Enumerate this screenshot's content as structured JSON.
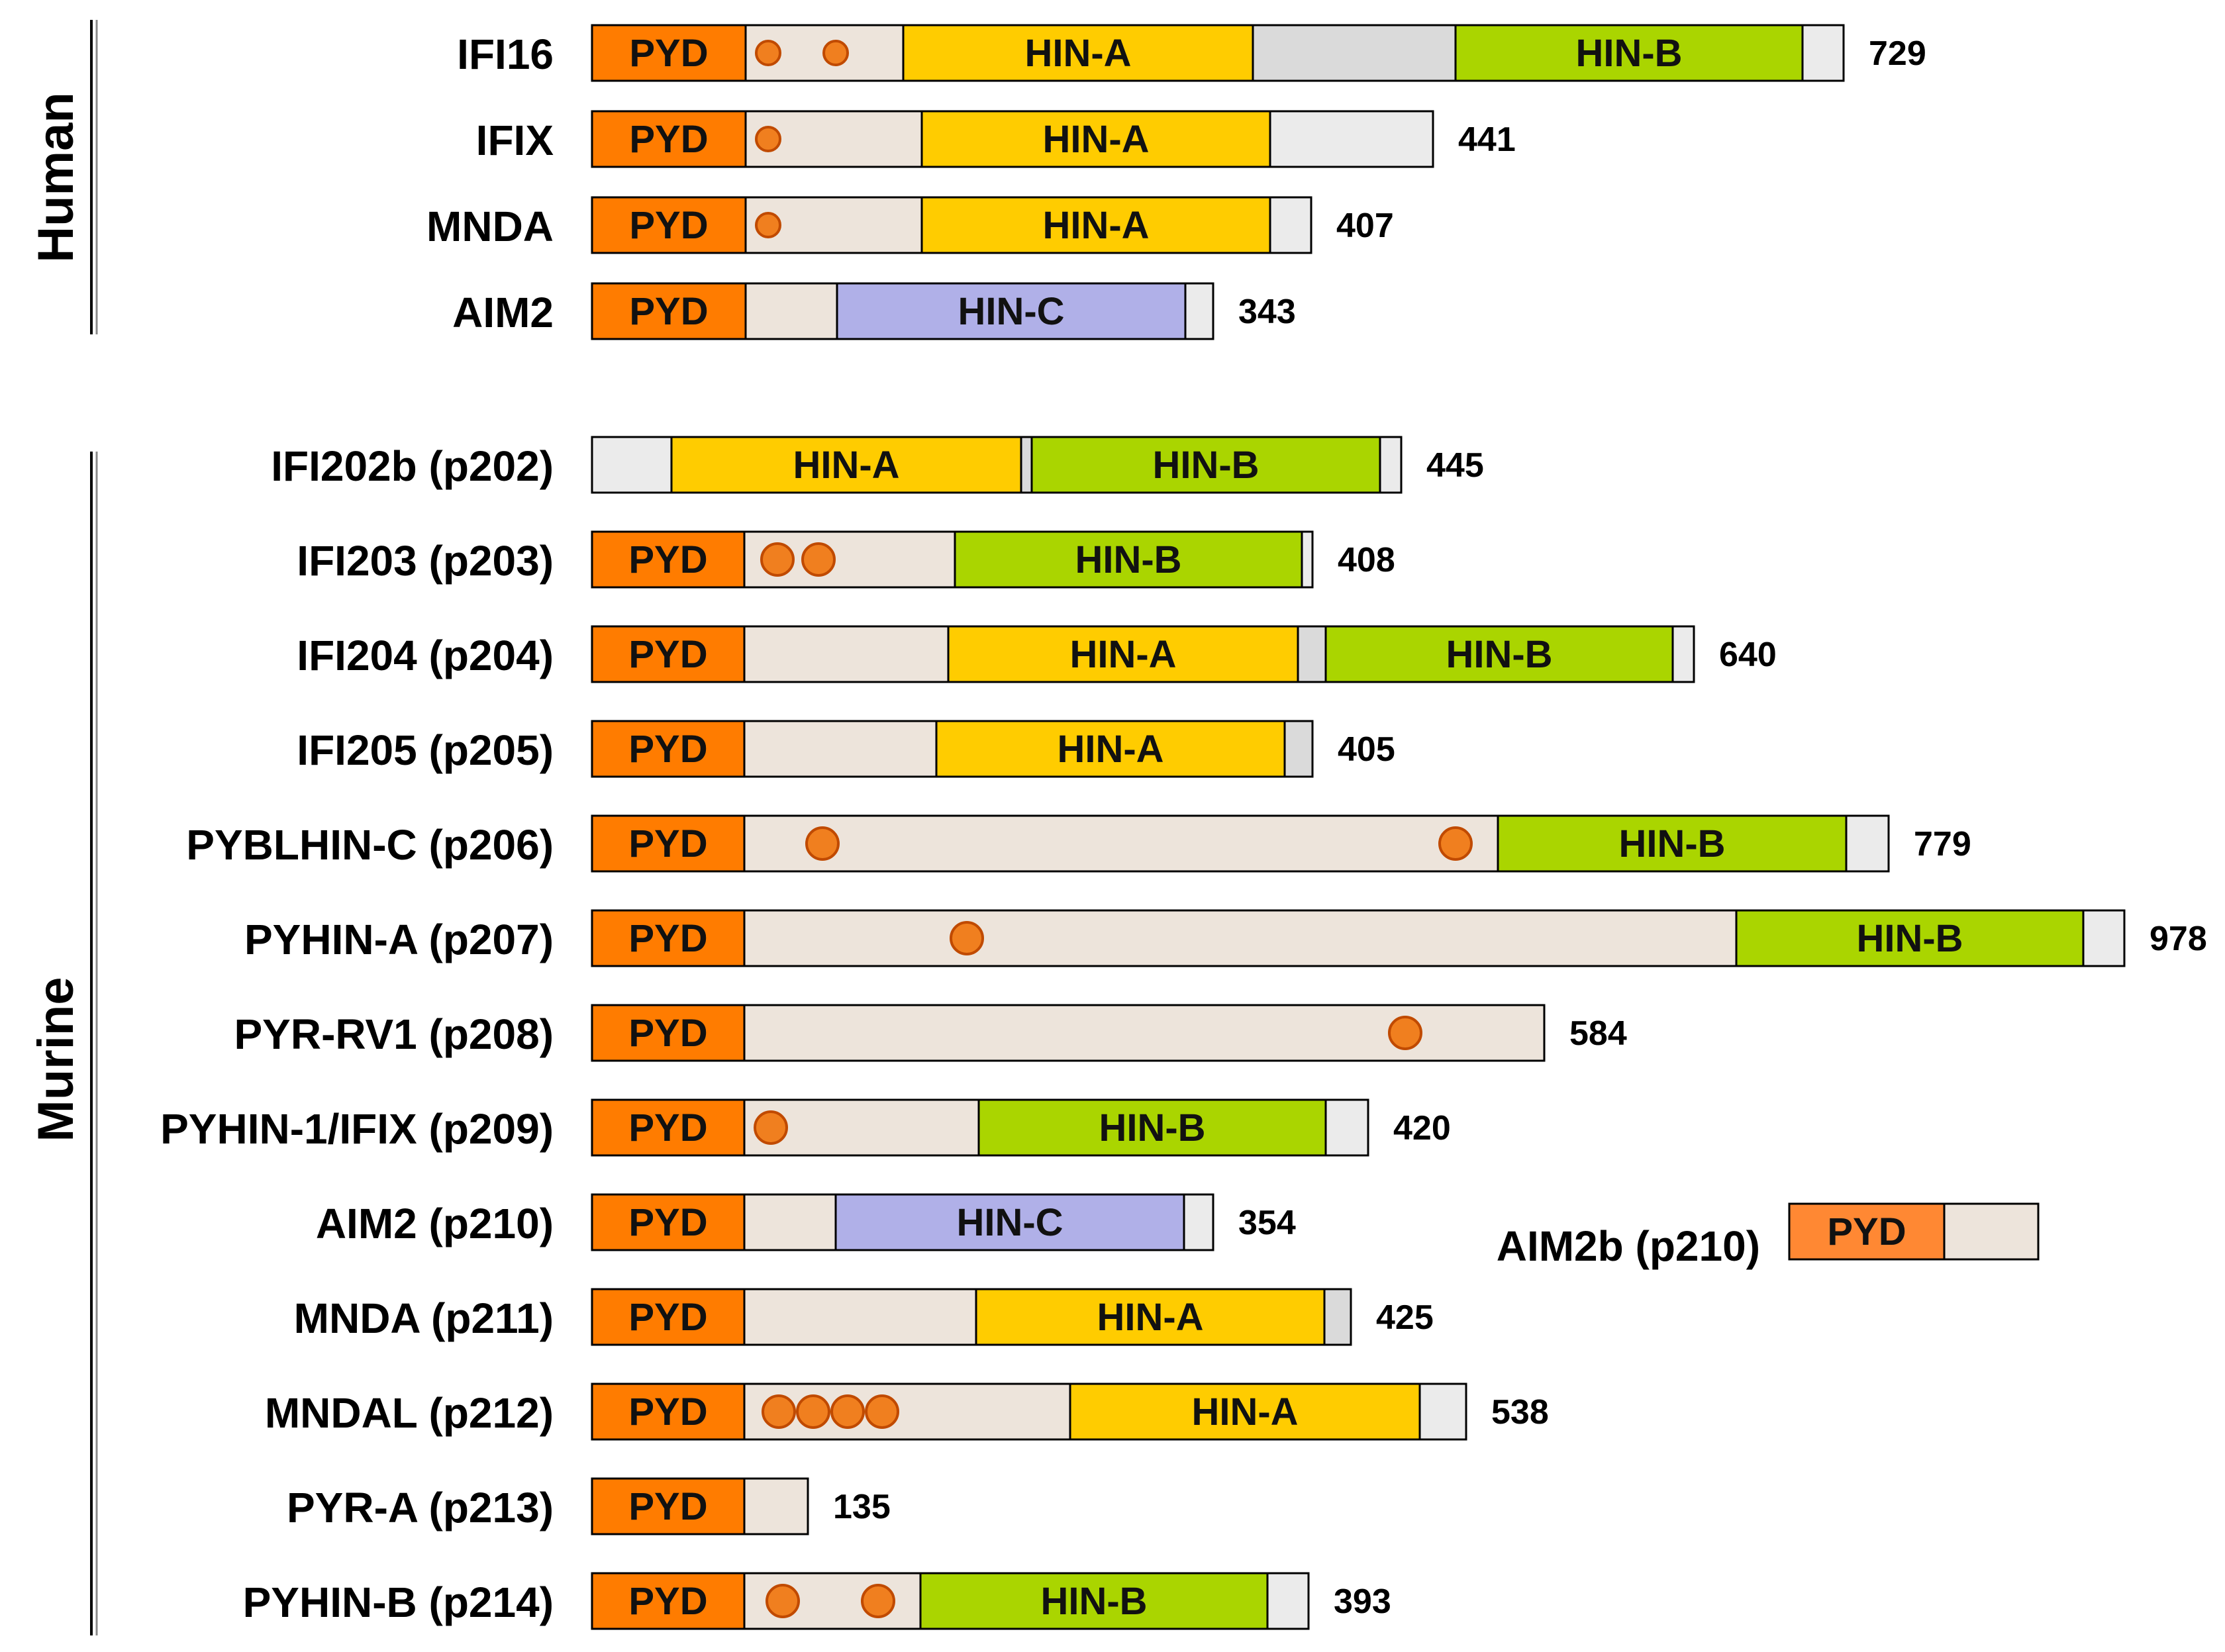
{
  "colors": {
    "pyd": "#FF7C00",
    "pyd_alt": "#FF8833",
    "hin_a": "#FFCC00",
    "hin_b": "#AAD500",
    "hin_c": "#B0B0E8",
    "linker": "#EDE4DB",
    "linker_grey": "#DADADA",
    "tail": "#EBEBEB",
    "motif_fill": "#F07F1F",
    "motif_stroke": "#C04A00",
    "outline": "#000000"
  },
  "groups": [
    {
      "label": "Human"
    },
    {
      "label": "Murine"
    }
  ],
  "proteins": [
    {
      "name": "IFI16",
      "length": "729",
      "group": 0,
      "segments": [
        [
          "pyd",
          "PYD"
        ],
        [
          "linker",
          ""
        ],
        [
          "hin_a",
          "HIN-A"
        ],
        [
          "linker_grey",
          ""
        ],
        [
          "hin_b",
          "HIN-B"
        ],
        [
          "tail",
          ""
        ]
      ],
      "motifs": 2
    },
    {
      "name": "IFIX",
      "length": "441",
      "group": 0,
      "segments": [
        [
          "pyd",
          "PYD"
        ],
        [
          "linker",
          ""
        ],
        [
          "hin_a",
          "HIN-A"
        ],
        [
          "tail",
          ""
        ]
      ],
      "motifs": 1
    },
    {
      "name": "MNDA",
      "length": "407",
      "group": 0,
      "segments": [
        [
          "pyd",
          "PYD"
        ],
        [
          "linker",
          ""
        ],
        [
          "hin_a",
          "HIN-A"
        ],
        [
          "tail",
          ""
        ]
      ],
      "motifs": 1
    },
    {
      "name": "AIM2",
      "length": "343",
      "group": 0,
      "segments": [
        [
          "pyd",
          "PYD"
        ],
        [
          "linker",
          ""
        ],
        [
          "hin_c",
          "HIN-C"
        ],
        [
          "tail",
          ""
        ]
      ],
      "motifs": 0
    },
    {
      "name": "IFI202b (p202)",
      "length": "445",
      "group": 1,
      "segments": [
        [
          "tail",
          ""
        ],
        [
          "hin_a",
          "HIN-A"
        ],
        [
          "linker_grey",
          ""
        ],
        [
          "hin_b",
          "HIN-B"
        ],
        [
          "tail",
          ""
        ]
      ],
      "motifs": 0
    },
    {
      "name": "IFI203 (p203)",
      "length": "408",
      "group": 1,
      "segments": [
        [
          "pyd",
          "PYD"
        ],
        [
          "linker",
          ""
        ],
        [
          "hin_b",
          "HIN-B"
        ],
        [
          "tail",
          ""
        ]
      ],
      "motifs": 2
    },
    {
      "name": "IFI204 (p204)",
      "length": "640",
      "group": 1,
      "segments": [
        [
          "pyd",
          "PYD"
        ],
        [
          "linker",
          ""
        ],
        [
          "hin_a",
          "HIN-A"
        ],
        [
          "linker_grey",
          ""
        ],
        [
          "hin_b",
          "HIN-B"
        ],
        [
          "tail",
          ""
        ]
      ],
      "motifs": 0
    },
    {
      "name": "IFI205 (p205)",
      "length": "405",
      "group": 1,
      "segments": [
        [
          "pyd",
          "PYD"
        ],
        [
          "linker",
          ""
        ],
        [
          "hin_a",
          "HIN-A"
        ],
        [
          "linker_grey",
          ""
        ]
      ],
      "motifs": 0
    },
    {
      "name": "PYBLHIN-C (p206)",
      "length": "779",
      "group": 1,
      "segments": [
        [
          "pyd",
          "PYD"
        ],
        [
          "linker",
          ""
        ],
        [
          "hin_b",
          "HIN-B"
        ],
        [
          "tail",
          ""
        ]
      ],
      "motifs": 2
    },
    {
      "name": "PYHIN-A (p207)",
      "length": "978",
      "group": 1,
      "segments": [
        [
          "pyd",
          "PYD"
        ],
        [
          "linker",
          ""
        ],
        [
          "hin_b",
          "HIN-B"
        ],
        [
          "tail",
          ""
        ]
      ],
      "motifs": 1
    },
    {
      "name": "PYR-RV1 (p208)",
      "length": "584",
      "group": 1,
      "segments": [
        [
          "pyd",
          "PYD"
        ],
        [
          "linker",
          ""
        ]
      ],
      "motifs": 1
    },
    {
      "name": "PYHIN-1/IFIX (p209)",
      "length": "420",
      "group": 1,
      "segments": [
        [
          "pyd",
          "PYD"
        ],
        [
          "linker",
          ""
        ],
        [
          "hin_b",
          "HIN-B"
        ],
        [
          "tail",
          ""
        ]
      ],
      "motifs": 1
    },
    {
      "name": "AIM2 (p210)",
      "length": "354",
      "group": 1,
      "segments": [
        [
          "pyd",
          "PYD"
        ],
        [
          "linker",
          ""
        ],
        [
          "hin_c",
          "HIN-C"
        ],
        [
          "tail",
          ""
        ]
      ],
      "motifs": 0
    },
    {
      "name": "MNDA (p211)",
      "length": "425",
      "group": 1,
      "segments": [
        [
          "pyd",
          "PYD"
        ],
        [
          "linker",
          ""
        ],
        [
          "hin_a",
          "HIN-A"
        ],
        [
          "linker_grey",
          ""
        ]
      ],
      "motifs": 0
    },
    {
      "name": "MNDAL (p212)",
      "length": "538",
      "group": 1,
      "segments": [
        [
          "pyd",
          "PYD"
        ],
        [
          "linker",
          ""
        ],
        [
          "hin_a",
          "HIN-A"
        ],
        [
          "tail",
          ""
        ]
      ],
      "motifs": 4
    },
    {
      "name": "PYR-A (p213)",
      "length": "135",
      "group": 1,
      "segments": [
        [
          "pyd",
          "PYD"
        ],
        [
          "linker",
          ""
        ]
      ],
      "motifs": 0
    },
    {
      "name": "PYHIN-B (p214)",
      "length": "393",
      "group": 1,
      "segments": [
        [
          "pyd",
          "PYD"
        ],
        [
          "linker",
          ""
        ],
        [
          "hin_b",
          "HIN-B"
        ],
        [
          "tail",
          ""
        ]
      ],
      "motifs": 2
    }
  ],
  "isoform": {
    "name": "AIM2b (p210)",
    "segments": [
      [
        "pyd_alt",
        "PYD"
      ],
      [
        "linker",
        ""
      ]
    ]
  }
}
